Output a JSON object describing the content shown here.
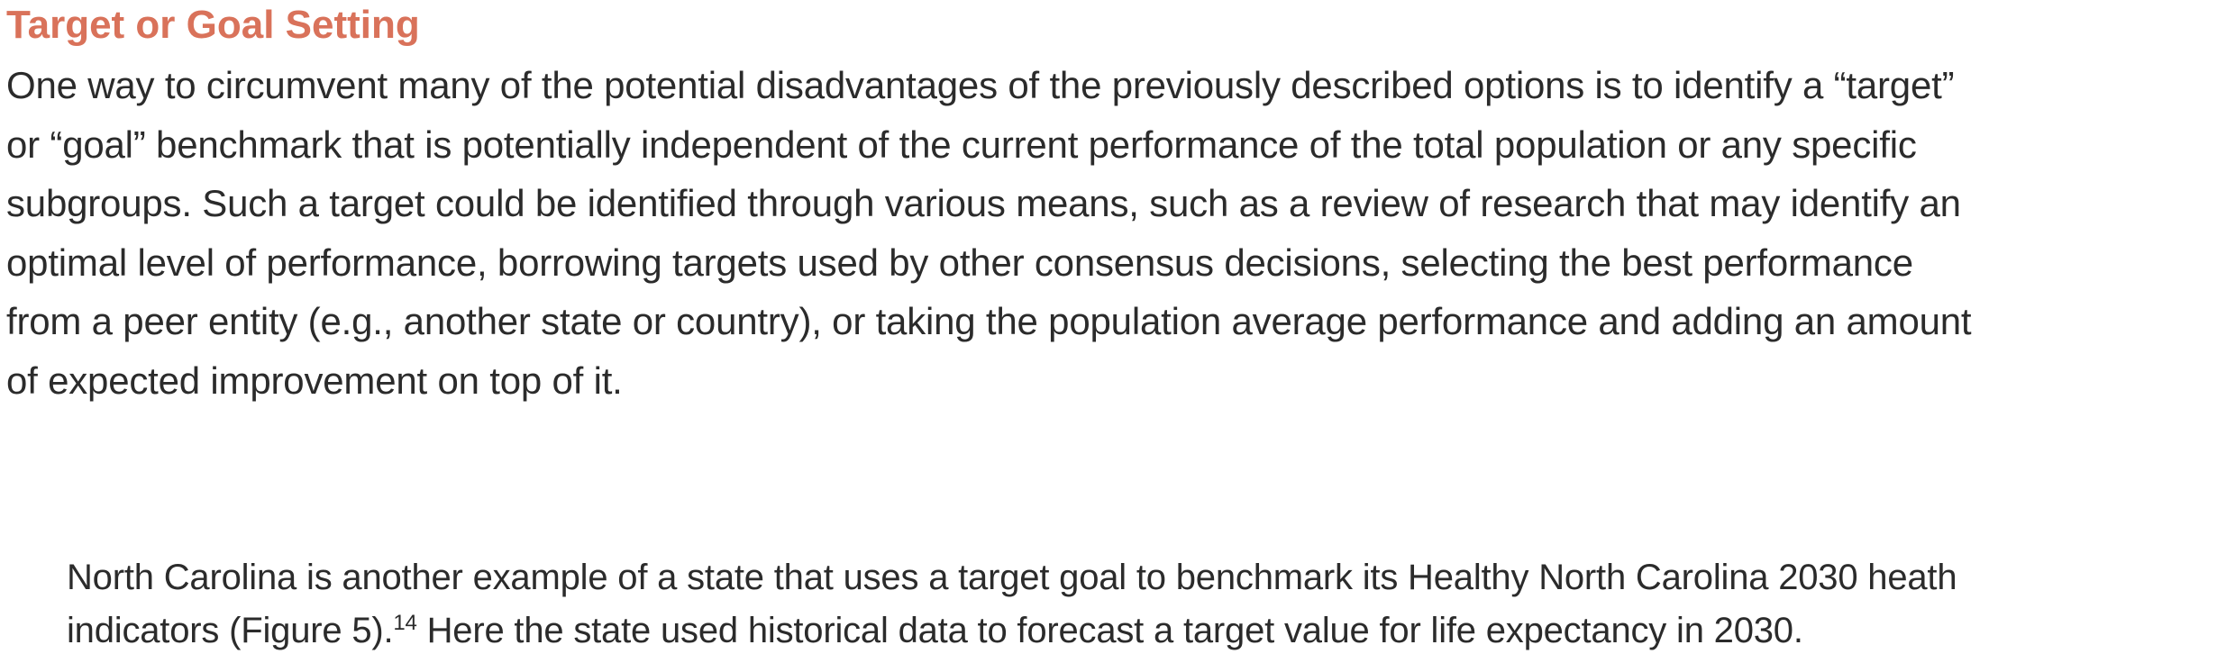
{
  "heading": "Target or Goal Setting",
  "paragraph_main": {
    "lines": [
      "One way to circumvent many of the potential disadvantages of the previously described options is to identify a “target”",
      "or “goal” benchmark that is potentially independent of the current performance of the total population or any specific",
      "subgroups. Such a target could be identified through various means, such as a review of research that may identify an",
      "optimal level of performance, borrowing targets used by other consensus decisions, selecting the best performance",
      "from a peer entity (e.g., another state or country), or taking the population average performance and adding an amount",
      "of expected improvement on top of it."
    ]
  },
  "paragraph_second": {
    "line1": "North Carolina is another example of a state that uses a target goal to benchmark its Healthy North Carolina 2030 heath",
    "line2_before": "indicators (Figure 5).",
    "footnote": "14",
    "line2_after": " Here the state used historical data to forecast a target value for life expectancy in 2030."
  }
}
